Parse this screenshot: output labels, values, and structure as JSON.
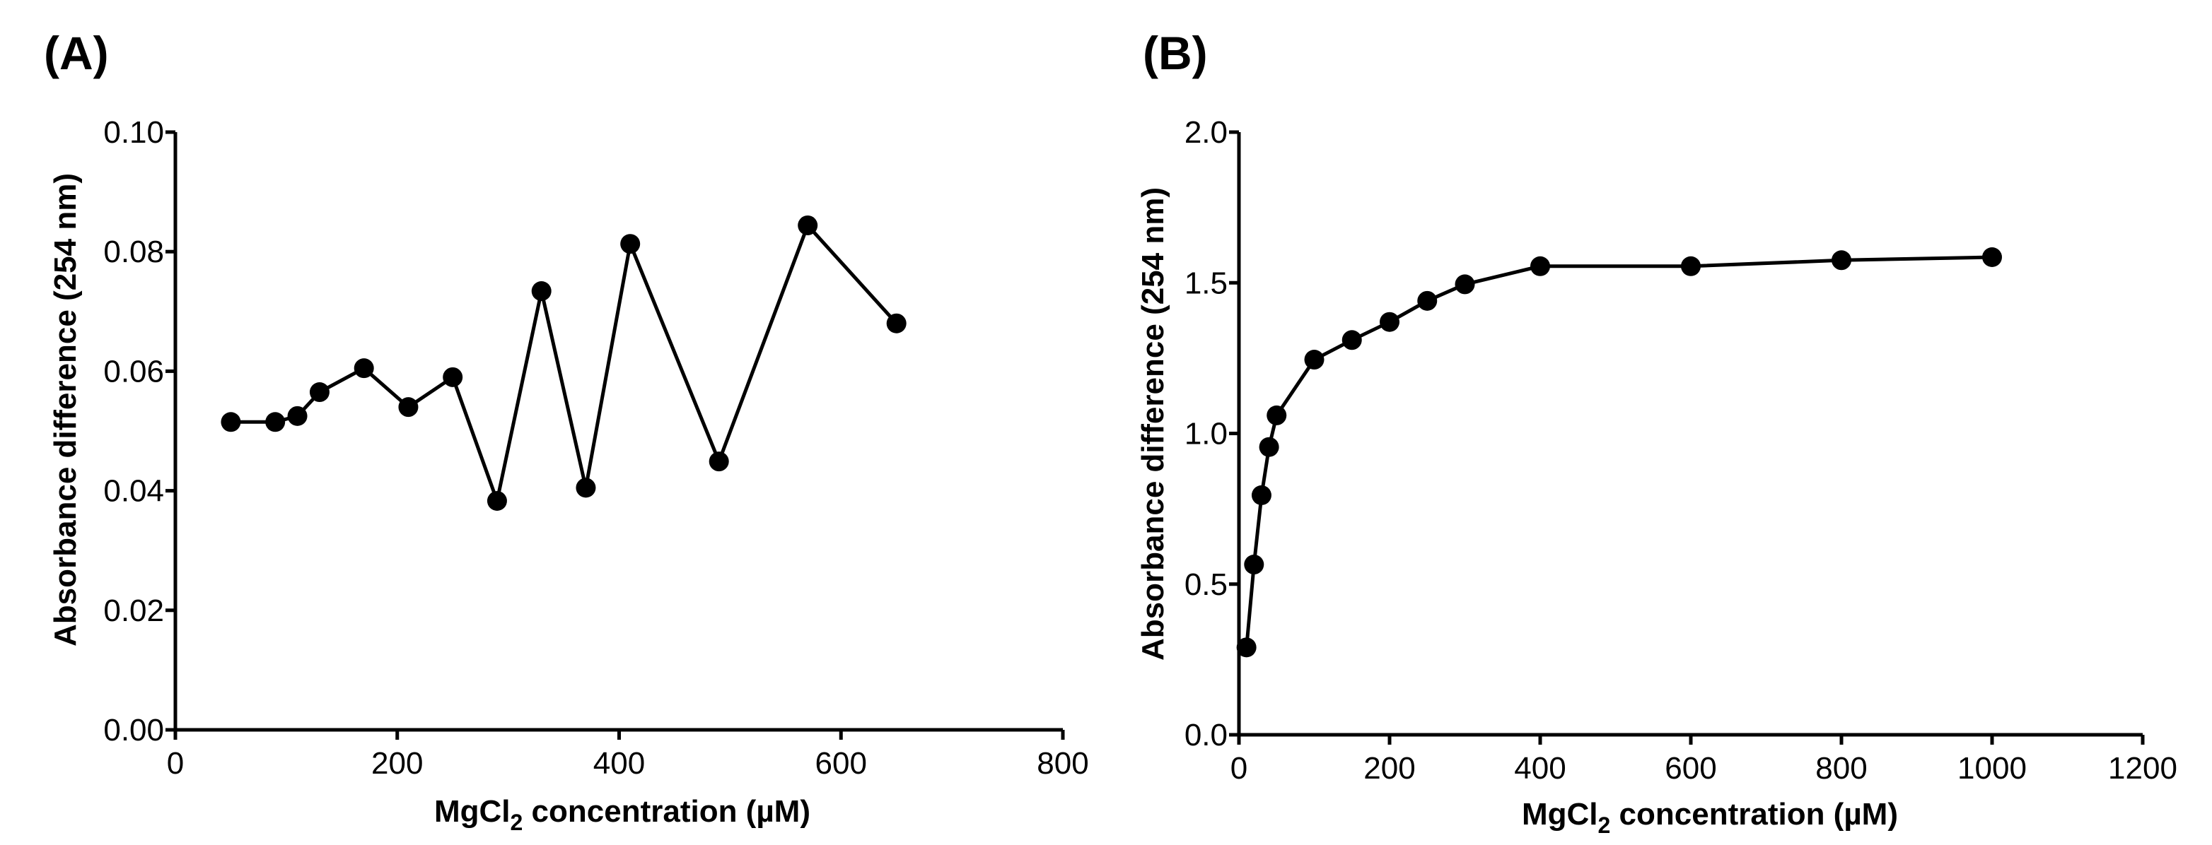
{
  "chart_data": [
    {
      "type": "line",
      "panel_label": "(A)",
      "xlabel_prefix": "MgCl",
      "xlabel_sub": "2",
      "xlabel_suffix": " concentration (µM)",
      "ylabel": "Absorbance difference (254 nm)",
      "xlim": [
        0,
        800
      ],
      "ylim": [
        0,
        0.1
      ],
      "xticks": [
        "0",
        "200",
        "400",
        "600",
        "800"
      ],
      "yticks": [
        "0.00",
        "0.02",
        "0.04",
        "0.06",
        "0.08",
        "0.10"
      ],
      "x": [
        50,
        90,
        110,
        130,
        170,
        210,
        250,
        290,
        330,
        370,
        410,
        490,
        570,
        650
      ],
      "y": [
        0.0515,
        0.0515,
        0.0525,
        0.0565,
        0.0605,
        0.054,
        0.059,
        0.0383,
        0.0734,
        0.0405,
        0.0813,
        0.0449,
        0.0844,
        0.068
      ]
    },
    {
      "type": "line",
      "panel_label": "(B)",
      "xlabel_prefix": "MgCl",
      "xlabel_sub": "2",
      "xlabel_suffix": " concentration (µM)",
      "ylabel": "Absorbance difference (254 nm)",
      "xlim": [
        0,
        1200
      ],
      "ylim": [
        0,
        2.0
      ],
      "xticks": [
        "0",
        "200",
        "400",
        "600",
        "800",
        "1000",
        "1200"
      ],
      "yticks": [
        "0.0",
        "0.5",
        "1.0",
        "1.5",
        "2.0"
      ],
      "x": [
        10,
        20,
        30,
        40,
        50,
        100,
        150,
        200,
        250,
        300,
        400,
        600,
        800,
        1000
      ],
      "y": [
        0.29,
        0.565,
        0.795,
        0.955,
        1.06,
        1.245,
        1.31,
        1.37,
        1.44,
        1.495,
        1.555,
        1.555,
        1.575,
        1.585
      ]
    }
  ]
}
